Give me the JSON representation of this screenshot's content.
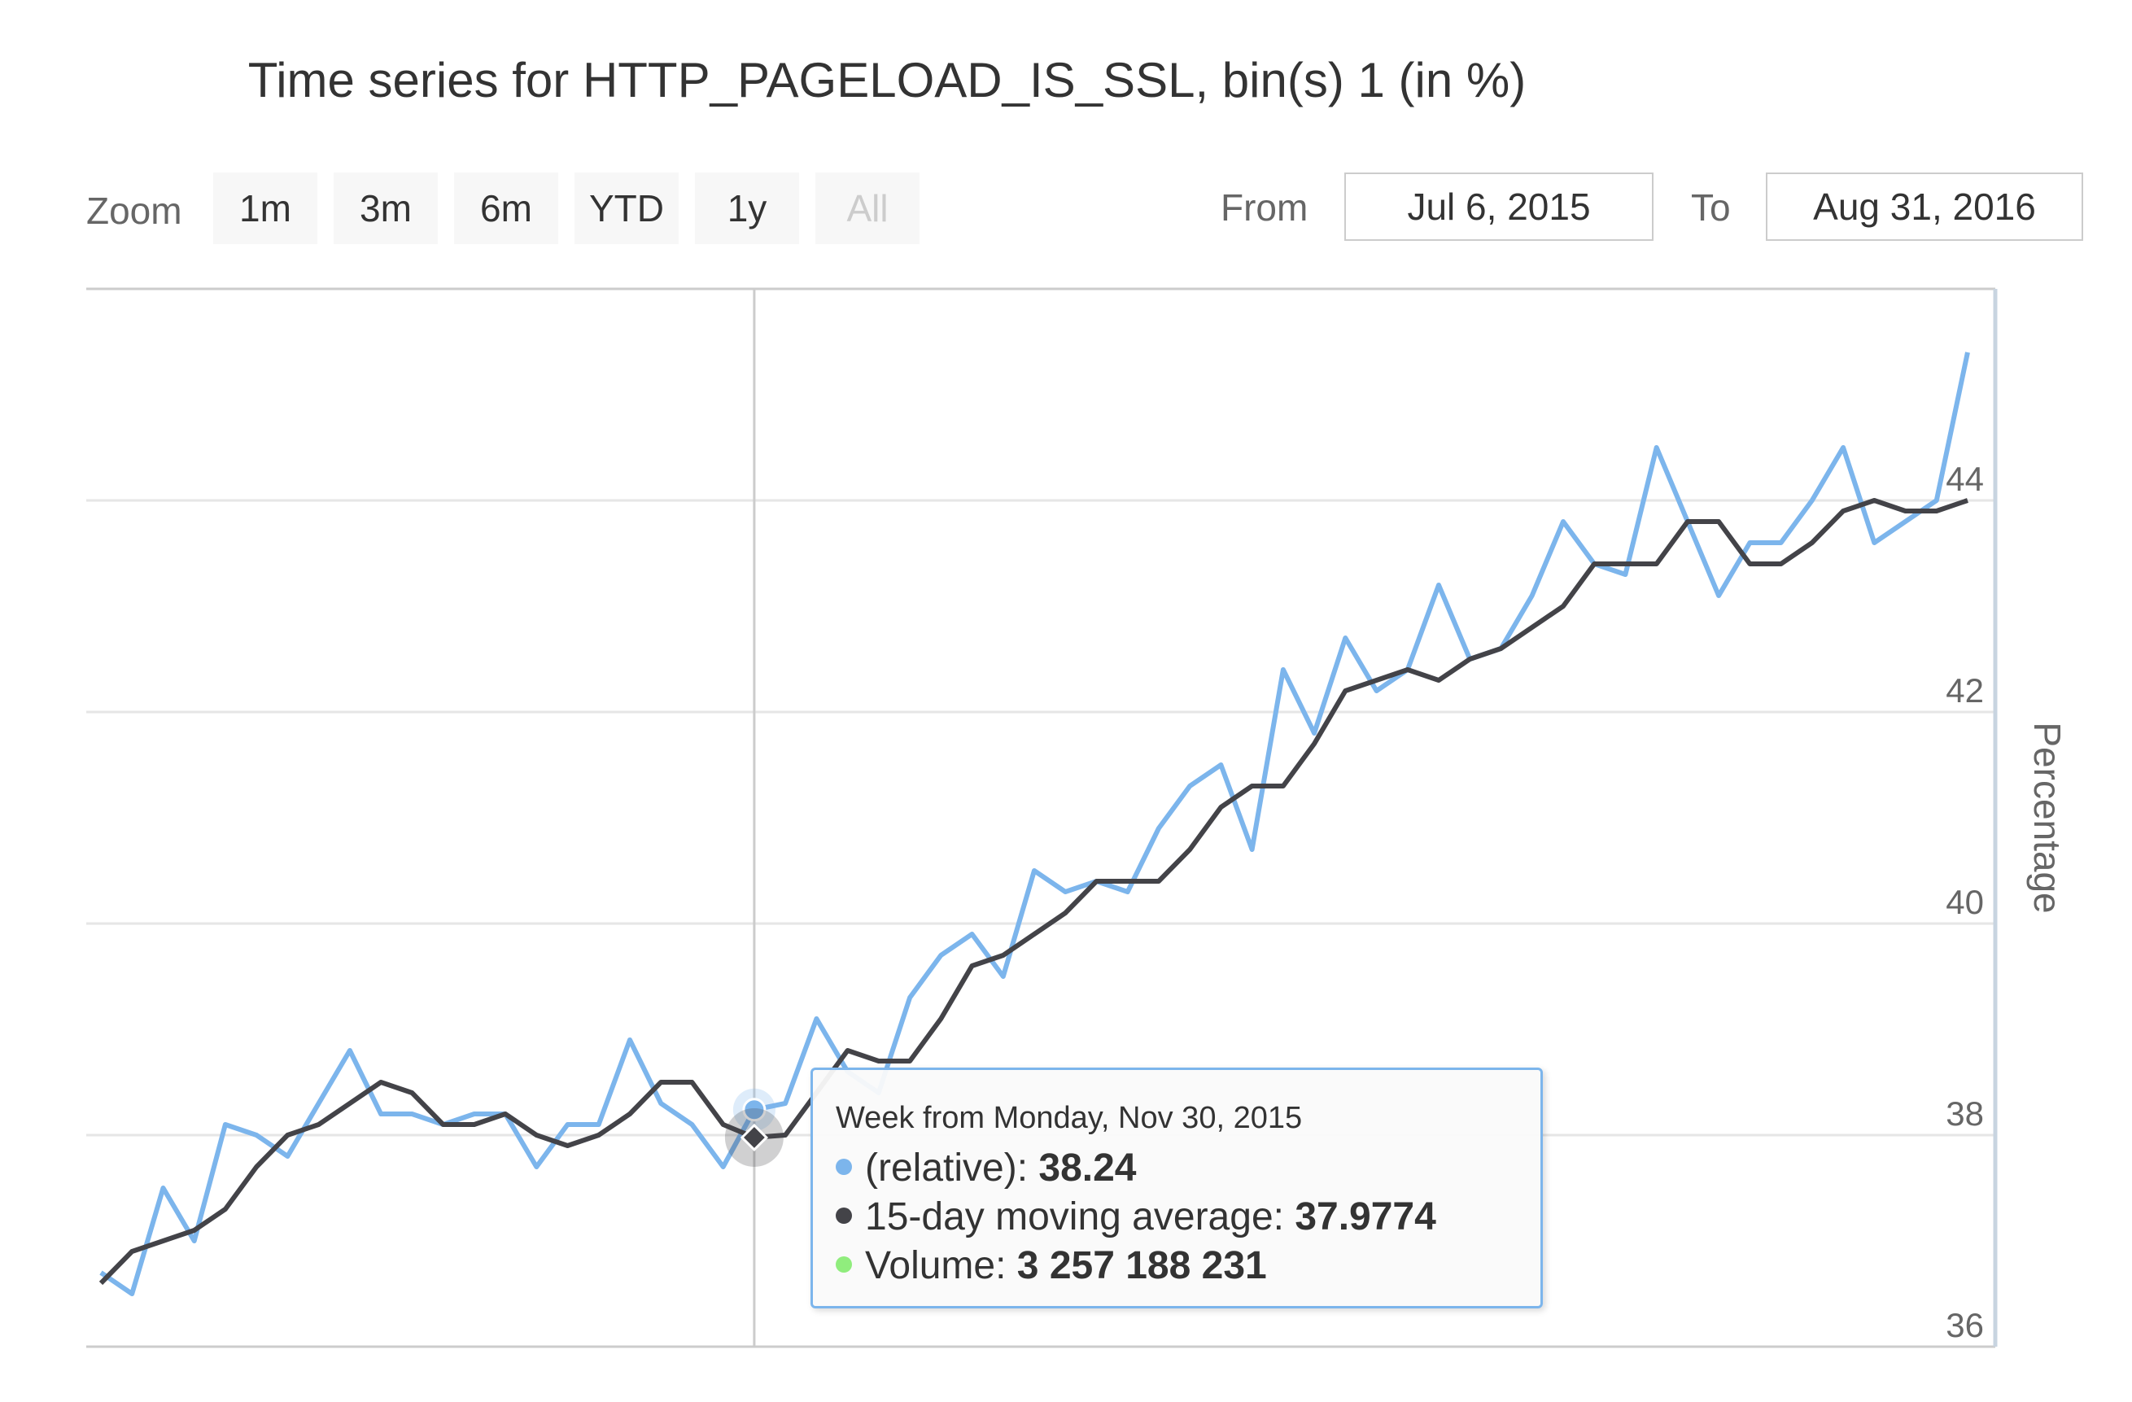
{
  "title": "Time series for HTTP_PAGELOAD_IS_SSL, bin(s) 1 (in %)",
  "range_selector": {
    "zoom_label": "Zoom",
    "buttons": [
      {
        "label": "1m",
        "disabled": false
      },
      {
        "label": "3m",
        "disabled": false
      },
      {
        "label": "6m",
        "disabled": false
      },
      {
        "label": "YTD",
        "disabled": false
      },
      {
        "label": "1y",
        "disabled": false
      },
      {
        "label": "All",
        "disabled": true
      }
    ],
    "from_label": "From",
    "from_value": "Jul 6, 2015",
    "to_label": "To",
    "to_value": "Aug 31, 2016"
  },
  "colors": {
    "relative": "#7cb5ec",
    "moving_average": "#434348",
    "volume": "#90ed7d",
    "grid": "#e6e6e6",
    "crosshair": "#cccccc"
  },
  "tooltip": {
    "header": "Week from Monday, Nov 30, 2015",
    "rows": [
      {
        "label": "(relative): ",
        "value": "38.24",
        "color": "#7cb5ec"
      },
      {
        "label": "15-day moving average: ",
        "value": "37.9774",
        "color": "#434348"
      },
      {
        "label": "Volume: ",
        "value": "3 257 188 231",
        "color": "#90ed7d"
      }
    ]
  },
  "chart_data": {
    "type": "line",
    "title": "Time series for HTTP_PAGELOAD_IS_SSL, bin(s) 1 (in %)",
    "ylabel": "Percentage",
    "ylim": [
      36,
      45.5
    ],
    "yticks": [
      36,
      38,
      40,
      42,
      44
    ],
    "y_axis_side": "right",
    "grid": true,
    "x_start": "Jul 6, 2015",
    "x_end": "Aug 31, 2016",
    "x_interval": "week",
    "highlight": {
      "date": "Nov 30, 2015",
      "relative": 38.24,
      "moving_average": 37.9774
    },
    "series": [
      {
        "name": "(relative)",
        "values": [
          36.7,
          36.5,
          37.5,
          37.0,
          38.1,
          38.0,
          37.8,
          38.3,
          38.8,
          38.2,
          38.2,
          38.1,
          38.2,
          38.2,
          37.7,
          38.1,
          38.1,
          38.9,
          38.3,
          38.1,
          37.7,
          38.24,
          38.3,
          39.1,
          38.6,
          38.4,
          39.3,
          39.7,
          39.9,
          39.5,
          40.5,
          40.3,
          40.4,
          40.3,
          40.9,
          41.3,
          41.5,
          40.7,
          42.4,
          41.8,
          42.7,
          42.2,
          42.4,
          43.2,
          42.5,
          42.6,
          43.1,
          43.8,
          43.4,
          43.3,
          44.5,
          43.8,
          43.1,
          43.6,
          43.6,
          44.0,
          44.5,
          43.6,
          43.8,
          44.0,
          45.4
        ]
      },
      {
        "name": "15-day moving average",
        "values": [
          36.6,
          36.9,
          37.0,
          37.1,
          37.3,
          37.7,
          38.0,
          38.1,
          38.3,
          38.5,
          38.4,
          38.1,
          38.1,
          38.2,
          38.0,
          37.9,
          38.0,
          38.2,
          38.5,
          38.5,
          38.1,
          37.9774,
          38.0,
          38.4,
          38.8,
          38.7,
          38.7,
          39.1,
          39.6,
          39.7,
          39.9,
          40.1,
          40.4,
          40.4,
          40.4,
          40.7,
          41.1,
          41.3,
          41.3,
          41.7,
          42.2,
          42.3,
          42.4,
          42.3,
          42.5,
          42.6,
          42.8,
          43.0,
          43.4,
          43.4,
          43.4,
          43.8,
          43.8,
          43.4,
          43.4,
          43.6,
          43.9,
          44.0,
          43.9,
          43.9,
          44.0
        ]
      }
    ]
  }
}
